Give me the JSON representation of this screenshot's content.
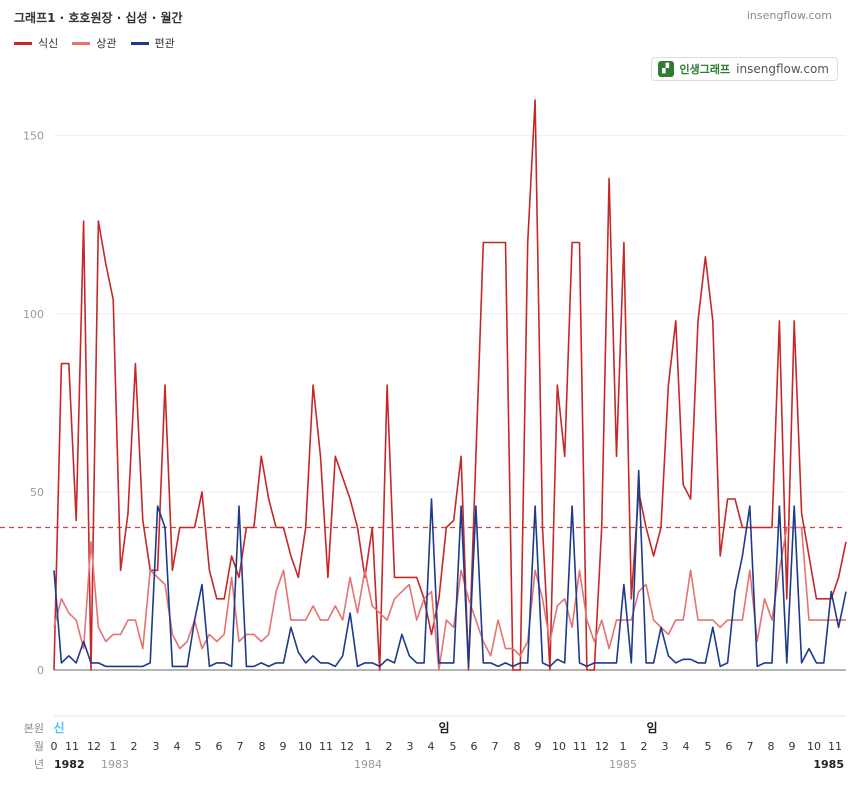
{
  "header": {
    "title": "그래프1 · 호호원장 · 십성 · 월간",
    "brand": "insengflow.com"
  },
  "badge": {
    "name": "인생그래프",
    "domain": "insengflow.com"
  },
  "chart_data": {
    "type": "line",
    "title": "그래프1 · 호호원장 · 십성 · 월간",
    "ylim": [
      0,
      160
    ],
    "yticks": [
      0,
      50,
      100,
      150
    ],
    "grid": true,
    "legend": "top-left",
    "reference_line": 40,
    "series": [
      {
        "name": "식신",
        "color": "#c62828",
        "values": [
          0,
          86,
          86,
          42,
          126,
          0,
          126,
          114,
          104,
          28,
          44,
          86,
          42,
          28,
          28,
          80,
          28,
          40,
          40,
          40,
          50,
          28,
          20,
          20,
          32,
          26,
          40,
          40,
          60,
          48,
          40,
          40,
          32,
          26,
          40,
          80,
          60,
          26,
          60,
          54,
          48,
          40,
          26,
          40,
          0,
          80,
          26,
          26,
          26,
          26,
          20,
          10,
          20,
          40,
          42,
          60,
          0,
          60,
          120,
          120,
          120,
          120,
          0,
          0,
          120,
          160,
          40,
          0,
          80,
          60,
          120,
          120,
          0,
          0,
          40,
          138,
          60,
          120,
          20,
          50,
          40,
          32,
          40,
          80,
          98,
          52,
          48,
          98,
          116,
          98,
          32,
          48,
          48,
          40,
          40,
          40,
          40,
          40,
          98,
          20,
          98,
          44,
          32,
          20,
          20,
          20,
          26,
          36
        ]
      },
      {
        "name": "상관",
        "color": "#e57373",
        "values": [
          12,
          20,
          16,
          14,
          6,
          36,
          12,
          8,
          10,
          10,
          14,
          14,
          6,
          28,
          26,
          24,
          10,
          6,
          8,
          14,
          6,
          10,
          8,
          10,
          26,
          8,
          10,
          10,
          8,
          10,
          22,
          28,
          14,
          14,
          14,
          18,
          14,
          14,
          18,
          14,
          26,
          16,
          28,
          18,
          16,
          14,
          20,
          22,
          24,
          14,
          20,
          22,
          0,
          14,
          12,
          28,
          20,
          14,
          8,
          4,
          14,
          6,
          6,
          4,
          8,
          28,
          20,
          8,
          18,
          20,
          12,
          28,
          14,
          8,
          14,
          6,
          14,
          14,
          14,
          22,
          24,
          14,
          12,
          10,
          14,
          14,
          28,
          14,
          14,
          14,
          12,
          14,
          14,
          14,
          28,
          8,
          20,
          14,
          28,
          40,
          40,
          40,
          14,
          14,
          14,
          14,
          14,
          14
        ]
      },
      {
        "name": "편관",
        "color": "#1e3a8a",
        "values": [
          28,
          2,
          4,
          2,
          8,
          2,
          2,
          1,
          1,
          1,
          1,
          1,
          1,
          2,
          46,
          40,
          1,
          1,
          1,
          14,
          24,
          1,
          2,
          2,
          1,
          46,
          1,
          1,
          2,
          1,
          2,
          2,
          12,
          5,
          2,
          4,
          2,
          2,
          1,
          4,
          16,
          1,
          2,
          2,
          1,
          3,
          2,
          10,
          4,
          2,
          2,
          48,
          2,
          2,
          2,
          46,
          1,
          46,
          2,
          2,
          1,
          2,
          1,
          2,
          2,
          46,
          2,
          1,
          3,
          2,
          46,
          2,
          1,
          2,
          2,
          2,
          2,
          24,
          2,
          56,
          2,
          2,
          12,
          4,
          2,
          3,
          3,
          2,
          2,
          12,
          1,
          2,
          22,
          32,
          46,
          1,
          2,
          2,
          46,
          2,
          46,
          2,
          6,
          2,
          2,
          22,
          12,
          22
        ]
      }
    ],
    "x_axis": {
      "row_label_pillar": "본원",
      "row_label_month": "월",
      "row_label_year": "년",
      "month_ticks": [
        "0",
        "11",
        "12",
        "1",
        "2",
        "3",
        "4",
        "5",
        "6",
        "7",
        "8",
        "9",
        "10",
        "11",
        "12",
        "1",
        "2",
        "3",
        "4",
        "5",
        "6",
        "7",
        "8",
        "9",
        "10",
        "11",
        "12",
        "1",
        "2",
        "3",
        "4",
        "5",
        "6",
        "7",
        "8",
        "9",
        "10",
        "11"
      ],
      "year_ticks": [
        {
          "label": "1982",
          "bold": true
        },
        {
          "label": "1983",
          "bold": false
        },
        {
          "label": "1984",
          "bold": false
        },
        {
          "label": "1985",
          "bold": false
        },
        {
          "label": "1985",
          "bold": true
        }
      ],
      "pillar_marks": [
        {
          "label": "신",
          "color": "#4fc3f7"
        },
        {
          "label": "임",
          "color": "#222222"
        },
        {
          "label": "임",
          "color": "#222222"
        }
      ]
    }
  }
}
